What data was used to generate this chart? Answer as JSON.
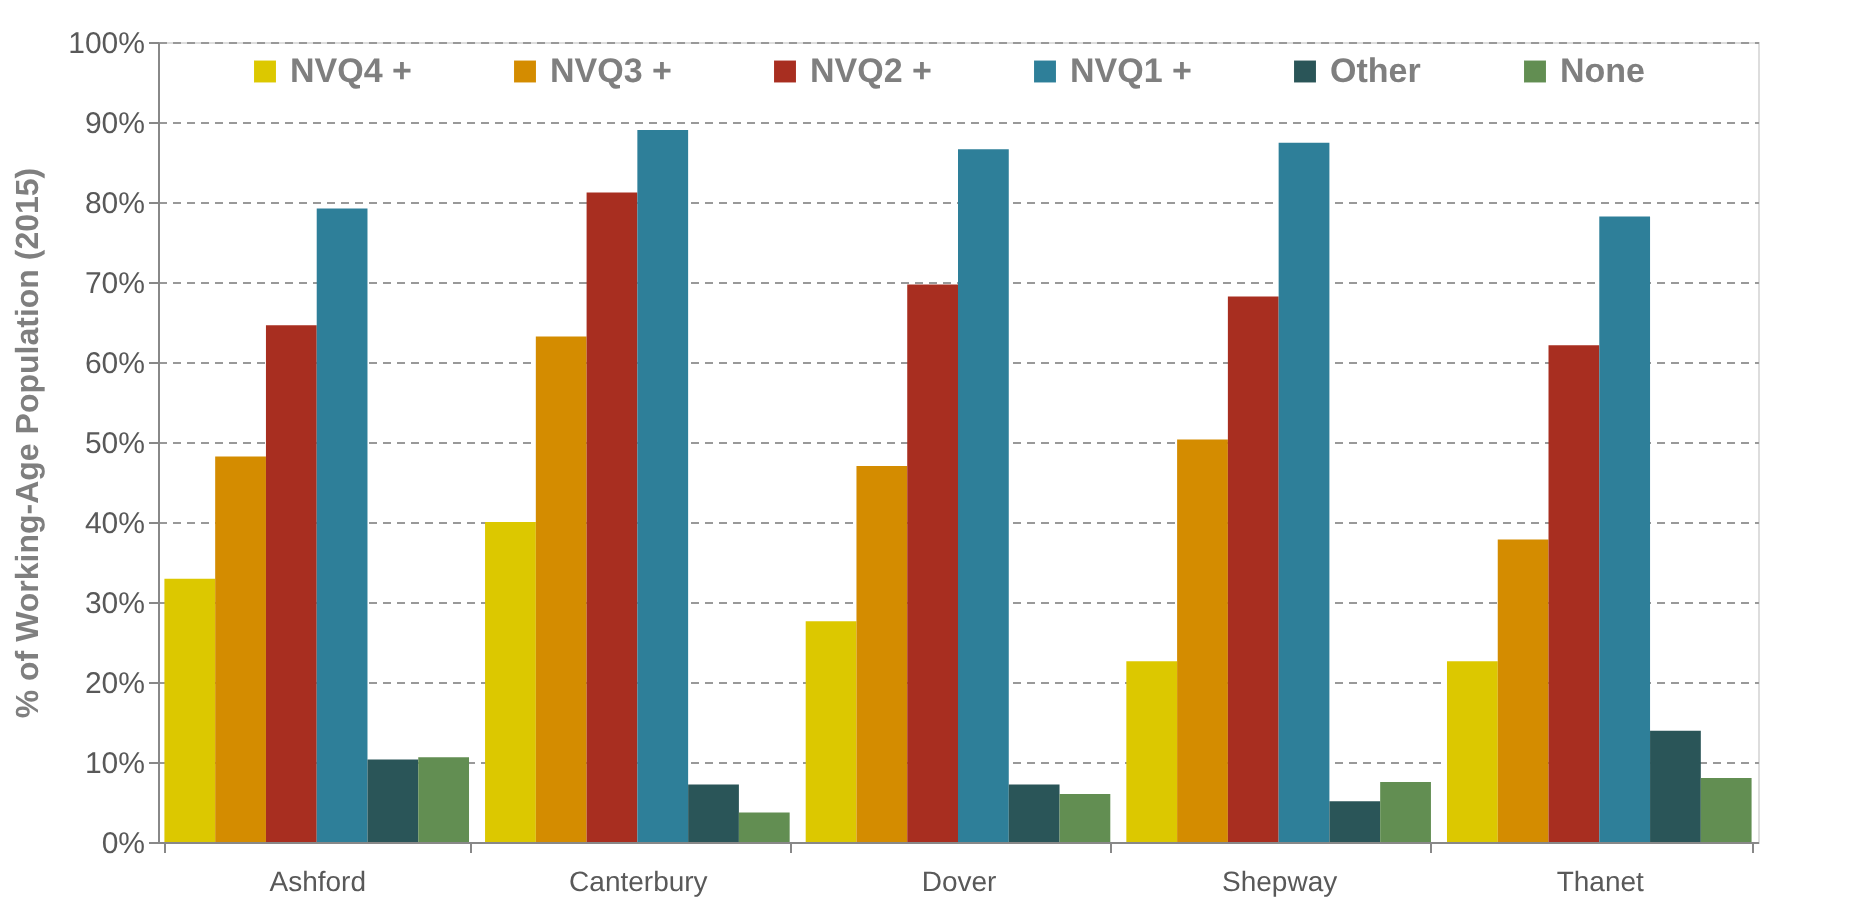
{
  "chart_data": {
    "type": "bar",
    "ylabel": "% of Working-Age Population (2015)",
    "categories": [
      "Ashford",
      "Canterbury",
      "Dover",
      "Shepway",
      "Thanet"
    ],
    "series": [
      {
        "name": "NVQ4 +",
        "color": "#dcc800",
        "values": [
          32.9,
          40.0,
          27.6,
          22.6,
          22.6
        ]
      },
      {
        "name": "NVQ3 +",
        "color": "#d48c00",
        "values": [
          48.2,
          63.2,
          47.0,
          50.3,
          37.8
        ]
      },
      {
        "name": "NVQ2 +",
        "color": "#a82e20",
        "values": [
          64.6,
          81.2,
          69.7,
          68.2,
          62.1
        ]
      },
      {
        "name": "NVQ1 +",
        "color": "#2e7f99",
        "values": [
          79.2,
          89.0,
          86.6,
          87.4,
          78.2
        ]
      },
      {
        "name": "Other",
        "color": "#2a5558",
        "values": [
          10.3,
          7.2,
          7.2,
          5.1,
          13.9
        ]
      },
      {
        "name": "None",
        "color": "#628e52",
        "values": [
          10.6,
          3.7,
          6.0,
          7.5,
          8.0
        ]
      }
    ],
    "ylim": [
      0,
      100
    ],
    "yticks": [
      {
        "value": 0,
        "label": "0%"
      },
      {
        "value": 10,
        "label": "10%"
      },
      {
        "value": 20,
        "label": "20%"
      },
      {
        "value": 30,
        "label": "30%"
      },
      {
        "value": 40,
        "label": "40%"
      },
      {
        "value": 50,
        "label": "50%"
      },
      {
        "value": 60,
        "label": "60%"
      },
      {
        "value": 70,
        "label": "70%"
      },
      {
        "value": 80,
        "label": "80%"
      },
      {
        "value": 90,
        "label": "90%"
      },
      {
        "value": 100,
        "label": "100%"
      }
    ],
    "grid": "y",
    "legend": "top"
  }
}
